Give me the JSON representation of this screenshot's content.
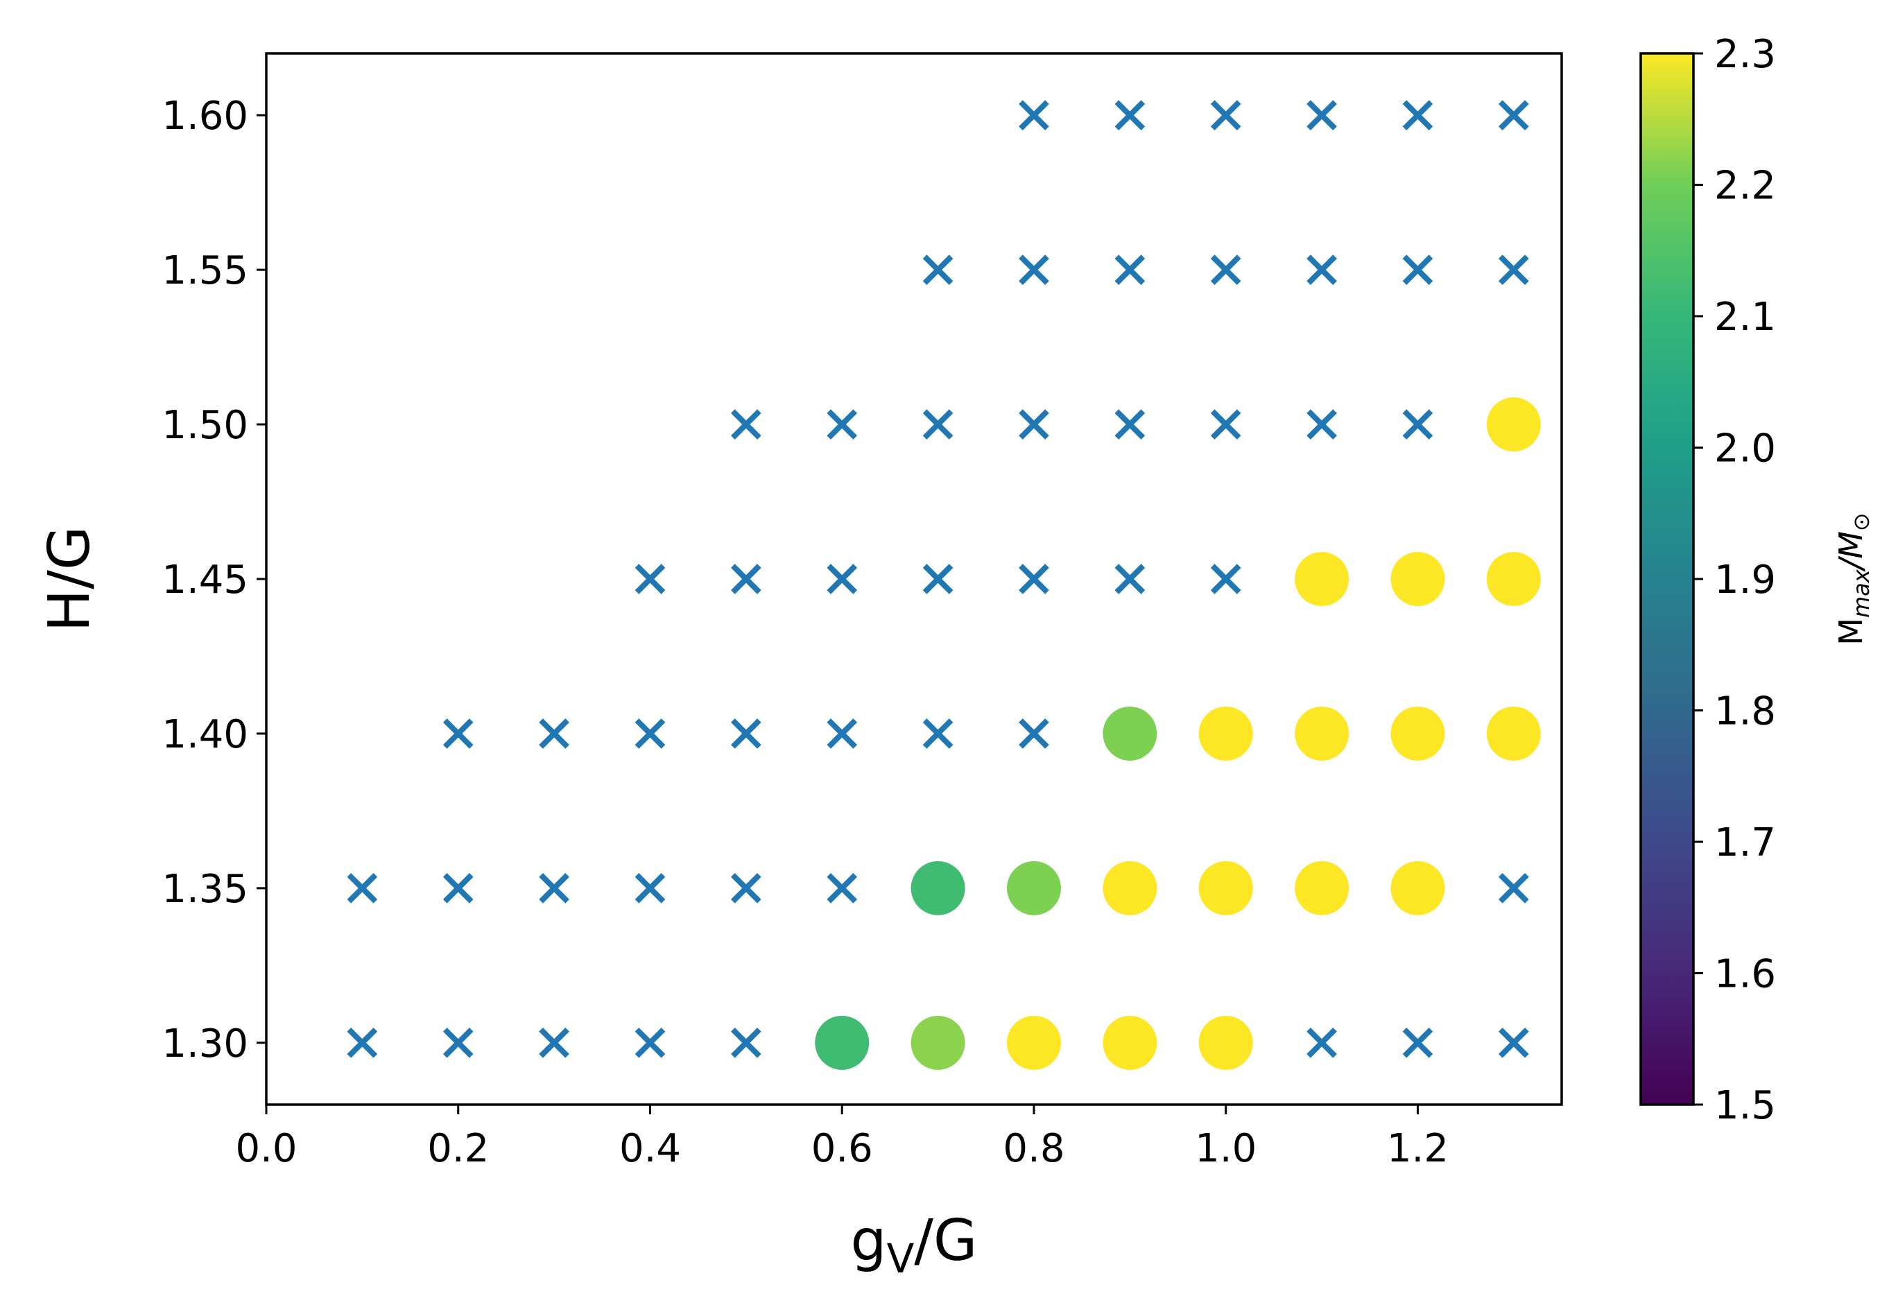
{
  "chart_data": {
    "type": "scatter",
    "xlabel": {
      "main": "g",
      "sub": "V",
      "rest": "/G"
    },
    "ylabel": "H/G",
    "xlim": [
      0.0,
      1.35
    ],
    "ylim": [
      1.28,
      1.62
    ],
    "x_ticks": [
      "0.0",
      "0.2",
      "0.4",
      "0.6",
      "0.8",
      "1.0",
      "1.2"
    ],
    "y_ticks": [
      "1.30",
      "1.35",
      "1.40",
      "1.45",
      "1.50",
      "1.55",
      "1.60"
    ],
    "colorbar": {
      "colormap": "viridis",
      "range": [
        1.5,
        2.3
      ],
      "ticks": [
        "1.5",
        "1.6",
        "1.7",
        "1.8",
        "1.9",
        "2.0",
        "2.1",
        "2.2",
        "2.3"
      ],
      "label": {
        "main": "M",
        "sub": "max",
        "rest": "/M",
        "sub2": "⊙"
      }
    },
    "cross_color": "#1f77b4",
    "series": [
      {
        "marker": "x",
        "points": [
          [
            0.8,
            1.6
          ],
          [
            0.9,
            1.6
          ],
          [
            1.0,
            1.6
          ],
          [
            1.1,
            1.6
          ],
          [
            1.2,
            1.6
          ],
          [
            1.3,
            1.6
          ],
          [
            0.7,
            1.55
          ],
          [
            0.8,
            1.55
          ],
          [
            0.9,
            1.55
          ],
          [
            1.0,
            1.55
          ],
          [
            1.1,
            1.55
          ],
          [
            1.2,
            1.55
          ],
          [
            1.3,
            1.55
          ],
          [
            0.5,
            1.5
          ],
          [
            0.6,
            1.5
          ],
          [
            0.7,
            1.5
          ],
          [
            0.8,
            1.5
          ],
          [
            0.9,
            1.5
          ],
          [
            1.0,
            1.5
          ],
          [
            1.1,
            1.5
          ],
          [
            1.2,
            1.5
          ],
          [
            0.4,
            1.45
          ],
          [
            0.5,
            1.45
          ],
          [
            0.6,
            1.45
          ],
          [
            0.7,
            1.45
          ],
          [
            0.8,
            1.45
          ],
          [
            0.9,
            1.45
          ],
          [
            1.0,
            1.45
          ],
          [
            0.2,
            1.4
          ],
          [
            0.3,
            1.4
          ],
          [
            0.4,
            1.4
          ],
          [
            0.5,
            1.4
          ],
          [
            0.6,
            1.4
          ],
          [
            0.7,
            1.4
          ],
          [
            0.8,
            1.4
          ],
          [
            0.1,
            1.35
          ],
          [
            0.2,
            1.35
          ],
          [
            0.3,
            1.35
          ],
          [
            0.4,
            1.35
          ],
          [
            0.5,
            1.35
          ],
          [
            0.6,
            1.35
          ],
          [
            1.3,
            1.35
          ],
          [
            0.1,
            1.3
          ],
          [
            0.2,
            1.3
          ],
          [
            0.3,
            1.3
          ],
          [
            0.4,
            1.3
          ],
          [
            0.5,
            1.3
          ],
          [
            1.1,
            1.3
          ],
          [
            1.2,
            1.3
          ],
          [
            1.3,
            1.3
          ]
        ]
      },
      {
        "marker": "o",
        "points": [
          [
            1.3,
            1.5,
            2.3
          ],
          [
            1.1,
            1.45,
            2.3
          ],
          [
            1.2,
            1.45,
            2.3
          ],
          [
            1.3,
            1.45,
            2.3
          ],
          [
            0.9,
            1.4,
            2.21
          ],
          [
            1.0,
            1.4,
            2.3
          ],
          [
            1.1,
            1.4,
            2.3
          ],
          [
            1.2,
            1.4,
            2.3
          ],
          [
            1.3,
            1.4,
            2.3
          ],
          [
            0.7,
            1.35,
            2.12
          ],
          [
            0.8,
            1.35,
            2.21
          ],
          [
            0.9,
            1.35,
            2.3
          ],
          [
            1.0,
            1.35,
            2.3
          ],
          [
            1.1,
            1.35,
            2.3
          ],
          [
            1.2,
            1.35,
            2.3
          ],
          [
            0.6,
            1.3,
            2.12
          ],
          [
            0.7,
            1.3,
            2.22
          ],
          [
            0.8,
            1.3,
            2.3
          ],
          [
            0.9,
            1.3,
            2.3
          ],
          [
            1.0,
            1.3,
            2.3
          ]
        ]
      }
    ]
  }
}
